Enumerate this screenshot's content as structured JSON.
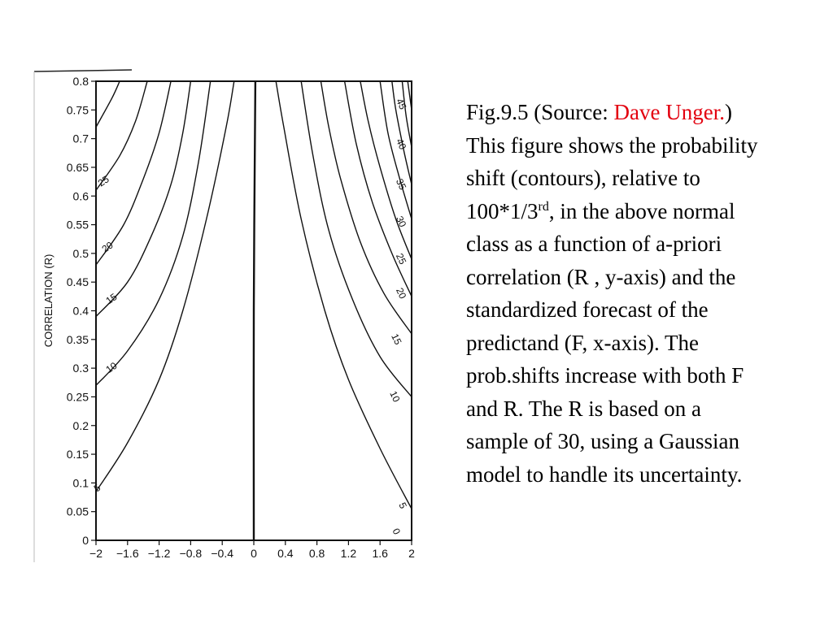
{
  "caption": {
    "p1": "Fig.9.5 (Source: ",
    "source_link": "Dave Unger.",
    "p2": ") This figure shows the probability shift (contours), relative to 100*1/3",
    "sup": "rd",
    "p3": ", in the above normal class as a function of a-priori correlation (R , y-axis) and the standardized forecast of the predictand (F, x-axis). The prob.shifts increase with both F and R. The R is based on a sample of 30, using a Gaussian model to handle its uncertainty."
  },
  "colors": {
    "caption_link": "#e3000f",
    "ink": "#111111"
  },
  "chart_data": {
    "type": "contour",
    "title": "",
    "xlabel": "",
    "ylabel": "CORRELATION (R)",
    "xlim": [
      -2,
      2
    ],
    "ylim": [
      0,
      0.8
    ],
    "xticks": [
      -2,
      -1.6,
      -1.2,
      -0.8,
      -0.4,
      0,
      0.4,
      0.8,
      1.2,
      1.6,
      2
    ],
    "xtick_labels": [
      "−2",
      "−1.6",
      "−1.2",
      "−0.8",
      "−0.4",
      "0",
      "0.4",
      "0.8",
      "1.2",
      "1.6",
      "2"
    ],
    "yticks": [
      0,
      0.05,
      0.1,
      0.15,
      0.2,
      0.25,
      0.3,
      0.35,
      0.4,
      0.45,
      0.5,
      0.55,
      0.6,
      0.65,
      0.7,
      0.75,
      0.8
    ],
    "ytick_labels": [
      "0",
      "0.05",
      "0.1",
      "0.15",
      "0.2",
      "0.25",
      "0.3",
      "0.35",
      "0.4",
      "0.45",
      "0.5",
      "0.55",
      "0.6",
      "0.65",
      "0.7",
      "0.75",
      "0.8"
    ],
    "contours": [
      {
        "level": "0",
        "points": [
          [
            0,
            0
          ],
          [
            0,
            0.4
          ],
          [
            0.02,
            0.8
          ]
        ]
      },
      {
        "level": "5",
        "points": [
          [
            -2,
            0.085
          ],
          [
            -1.6,
            0.17
          ],
          [
            -1.2,
            0.28
          ],
          [
            -0.9,
            0.4
          ],
          [
            -0.6,
            0.56
          ],
          [
            -0.35,
            0.72
          ],
          [
            -0.25,
            0.8
          ]
        ]
      },
      {
        "level": "10",
        "points": [
          [
            -2,
            0.27
          ],
          [
            -1.6,
            0.33
          ],
          [
            -1.2,
            0.42
          ],
          [
            -0.9,
            0.53
          ],
          [
            -0.7,
            0.66
          ],
          [
            -0.55,
            0.8
          ]
        ]
      },
      {
        "level": "15",
        "points": [
          [
            -2,
            0.39
          ],
          [
            -1.6,
            0.45
          ],
          [
            -1.3,
            0.53
          ],
          [
            -1.05,
            0.62
          ],
          [
            -0.9,
            0.71
          ],
          [
            -0.8,
            0.8
          ]
        ]
      },
      {
        "level": "20",
        "points": [
          [
            -2,
            0.48
          ],
          [
            -1.65,
            0.55
          ],
          [
            -1.4,
            0.63
          ],
          [
            -1.2,
            0.71
          ],
          [
            -1.05,
            0.8
          ]
        ]
      },
      {
        "level": "25",
        "points": [
          [
            -2,
            0.61
          ],
          [
            -1.7,
            0.67
          ],
          [
            -1.5,
            0.73
          ],
          [
            -1.35,
            0.8
          ]
        ]
      },
      {
        "level": "",
        "points": [
          [
            -2,
            0.72
          ],
          [
            -1.8,
            0.77
          ],
          [
            -1.7,
            0.8
          ]
        ]
      },
      {
        "level": "5",
        "points": [
          [
            2,
            0.055
          ],
          [
            1.6,
            0.16
          ],
          [
            1.2,
            0.28
          ],
          [
            0.9,
            0.4
          ],
          [
            0.6,
            0.56
          ],
          [
            0.38,
            0.72
          ],
          [
            0.28,
            0.8
          ]
        ]
      },
      {
        "level": "10",
        "points": [
          [
            2,
            0.25
          ],
          [
            1.6,
            0.32
          ],
          [
            1.25,
            0.42
          ],
          [
            0.95,
            0.54
          ],
          [
            0.75,
            0.67
          ],
          [
            0.6,
            0.8
          ]
        ]
      },
      {
        "level": "15",
        "points": [
          [
            2,
            0.36
          ],
          [
            1.65,
            0.43
          ],
          [
            1.35,
            0.52
          ],
          [
            1.1,
            0.63
          ],
          [
            0.95,
            0.72
          ],
          [
            0.85,
            0.8
          ]
        ]
      },
      {
        "level": "20",
        "points": [
          [
            2,
            0.425
          ],
          [
            1.75,
            0.5
          ],
          [
            1.5,
            0.59
          ],
          [
            1.3,
            0.69
          ],
          [
            1.15,
            0.8
          ]
        ]
      },
      {
        "level": "25",
        "points": [
          [
            2,
            0.49
          ],
          [
            1.8,
            0.56
          ],
          [
            1.6,
            0.65
          ],
          [
            1.45,
            0.73
          ],
          [
            1.35,
            0.8
          ]
        ]
      },
      {
        "level": "30",
        "points": [
          [
            2,
            0.56
          ],
          [
            1.85,
            0.63
          ],
          [
            1.7,
            0.71
          ],
          [
            1.6,
            0.8
          ]
        ]
      },
      {
        "level": "35",
        "points": [
          [
            2,
            0.62
          ],
          [
            1.9,
            0.68
          ],
          [
            1.8,
            0.75
          ],
          [
            1.75,
            0.8
          ]
        ]
      },
      {
        "level": "40",
        "points": [
          [
            2,
            0.685
          ],
          [
            1.93,
            0.74
          ],
          [
            1.88,
            0.8
          ]
        ]
      },
      {
        "level": "45",
        "points": [
          [
            2,
            0.75
          ],
          [
            1.95,
            0.8
          ]
        ]
      }
    ],
    "contour_labels": [
      {
        "text": "5",
        "x": -1.98,
        "y": 0.09
      },
      {
        "text": "10",
        "x": -1.8,
        "y": 0.3
      },
      {
        "text": "15",
        "x": -1.8,
        "y": 0.42
      },
      {
        "text": "20",
        "x": -1.85,
        "y": 0.51
      },
      {
        "text": "25",
        "x": -1.9,
        "y": 0.625
      },
      {
        "text": "0",
        "x": 1.8,
        "y": 0.015
      },
      {
        "text": "5",
        "x": 1.88,
        "y": 0.06
      },
      {
        "text": "10",
        "x": 1.78,
        "y": 0.25
      },
      {
        "text": "15",
        "x": 1.8,
        "y": 0.35
      },
      {
        "text": "20",
        "x": 1.86,
        "y": 0.43
      },
      {
        "text": "25",
        "x": 1.86,
        "y": 0.49
      },
      {
        "text": "30",
        "x": 1.86,
        "y": 0.555
      },
      {
        "text": "35",
        "x": 1.86,
        "y": 0.62
      },
      {
        "text": "40",
        "x": 1.86,
        "y": 0.69
      },
      {
        "text": "45",
        "x": 1.86,
        "y": 0.76
      }
    ]
  }
}
